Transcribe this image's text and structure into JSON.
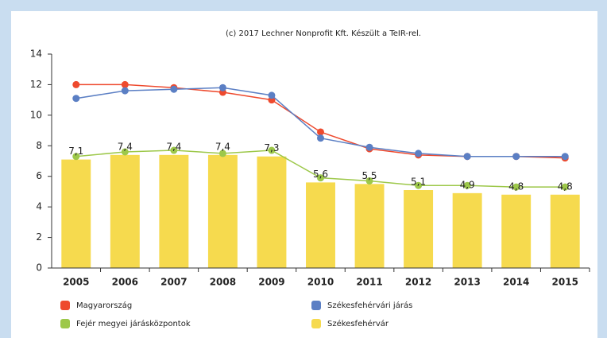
{
  "chart_data": {
    "type": "bar",
    "title": "(c) 2017 Lechner Nonprofit Kft. Készült a TeIR-rel.",
    "categories": [
      "2005",
      "2006",
      "2007",
      "2008",
      "2009",
      "2010",
      "2011",
      "2012",
      "2013",
      "2014",
      "2015"
    ],
    "series": [
      {
        "name": "Magyarország",
        "type": "line",
        "color": "#ee4a2e",
        "values": [
          12.0,
          12.0,
          11.8,
          11.5,
          11.0,
          8.9,
          7.8,
          7.4,
          7.3,
          7.3,
          7.2
        ]
      },
      {
        "name": "Székesfehérvári járás",
        "type": "line",
        "color": "#5b7fc4",
        "values": [
          11.1,
          11.6,
          11.7,
          11.8,
          11.3,
          8.5,
          7.9,
          7.5,
          7.3,
          7.3,
          7.3
        ]
      },
      {
        "name": "Fejér megyei járásközpontok",
        "type": "line",
        "color": "#9dc84a",
        "values": [
          7.3,
          7.6,
          7.7,
          7.5,
          7.7,
          5.9,
          5.7,
          5.4,
          5.4,
          5.3,
          5.3
        ]
      },
      {
        "name": "Székesfehérvár",
        "type": "bar",
        "color": "#f6da4e",
        "values": [
          7.1,
          7.4,
          7.4,
          7.4,
          7.3,
          5.6,
          5.5,
          5.1,
          4.9,
          4.8,
          4.8
        ],
        "value_labels": [
          "7,1",
          "7,4",
          "7,4",
          "7,4",
          "7,3",
          "5,6",
          "5,5",
          "5,1",
          "4,9",
          "4,8",
          "4,8"
        ]
      }
    ],
    "ylim": [
      0,
      14
    ],
    "yticks": [
      0,
      2,
      4,
      6,
      8,
      10,
      12,
      14
    ],
    "grid": false
  }
}
